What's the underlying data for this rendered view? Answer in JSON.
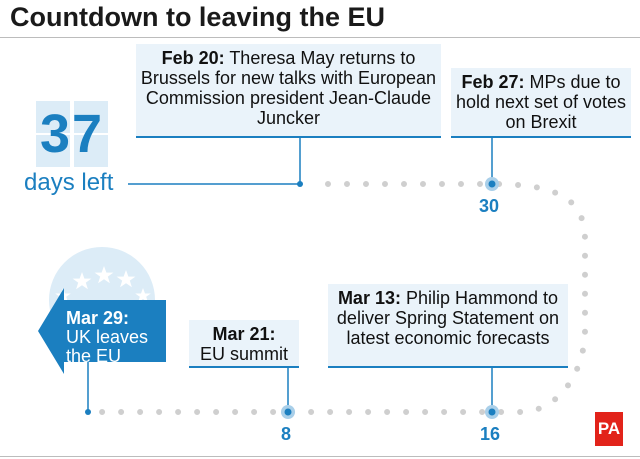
{
  "title": "Countdown to leaving the EU",
  "countdown": {
    "number": "37",
    "label": "days left"
  },
  "events": [
    {
      "date": "Feb 20:",
      "text": "Theresa May returns to Brussels for new talks with European Commission president Jean-Claude Juncker"
    },
    {
      "date": "Feb 27:",
      "text": "MPs due to hold next set of votes on Brexit",
      "days": "30"
    },
    {
      "date": "Mar 13:",
      "text": "Philip Hammond to deliver Spring Statement on latest economic forecasts",
      "days": "16"
    },
    {
      "date": "Mar 21:",
      "text": "EU summit",
      "days": "8"
    },
    {
      "date": "Mar 29:",
      "text": "UK leaves the EU"
    }
  ],
  "logo": "PA",
  "colors": {
    "accent": "#1b7fc0",
    "box": "#eaf3fa",
    "logo": "#e2231a"
  }
}
